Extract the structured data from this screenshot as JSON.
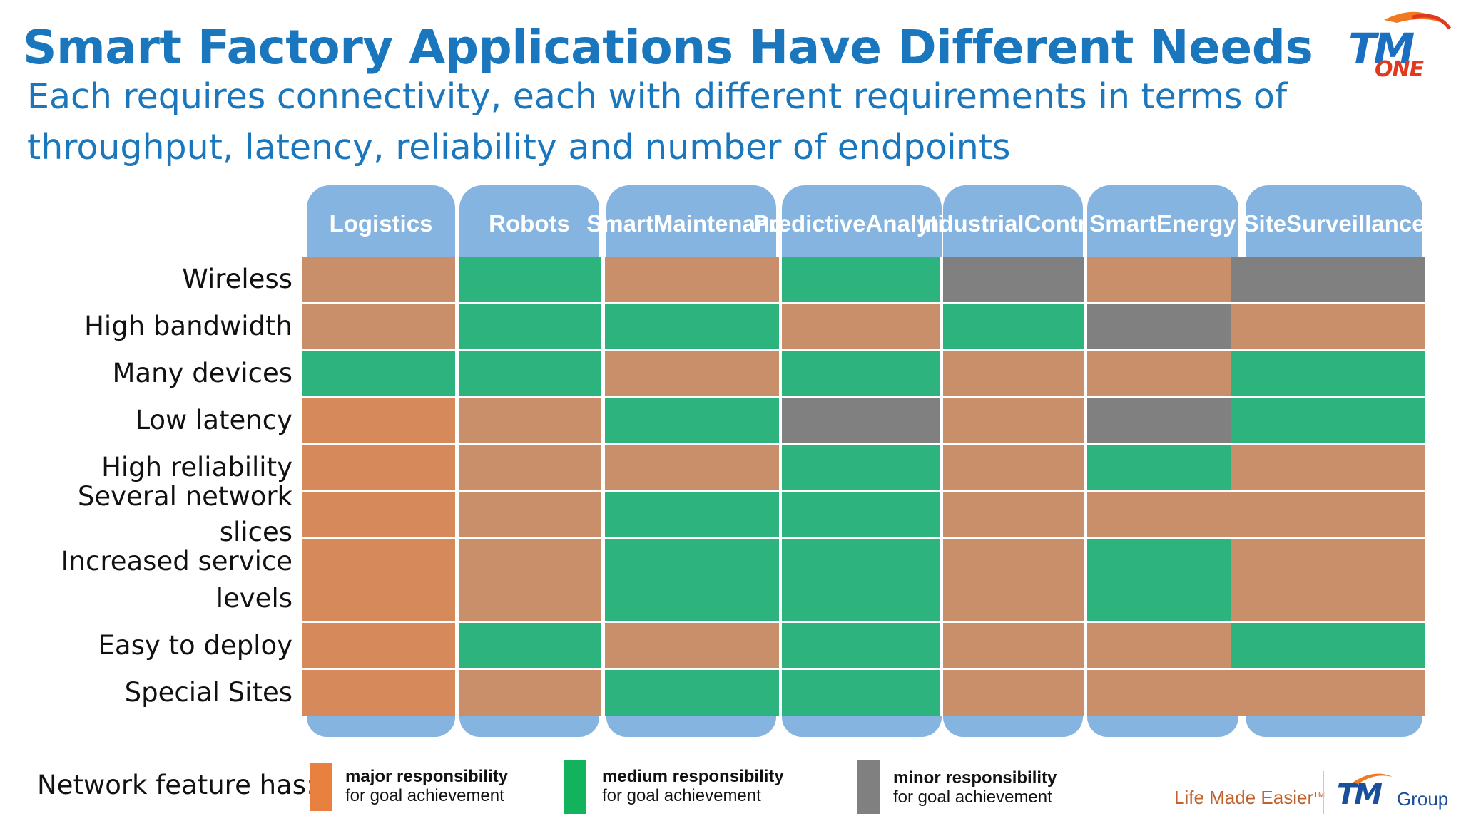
{
  "title": "Smart Factory Applications Have Different Needs",
  "subtitle": "Each requires connectivity, each with different requirements in terms of throughput, latency, reliability and number of endpoints",
  "logo": {
    "brand": "TM",
    "suffix": "ONE"
  },
  "columns": [
    "Logistics",
    "Robots",
    "Smart Maintenance",
    "Predictive Analytics",
    "Industrial Control",
    "Smart Energy",
    "Site Surveillance"
  ],
  "rows": [
    "Wireless",
    "High bandwidth",
    "Many devices",
    "Low latency",
    "High reliability",
    "Several network slices",
    "Increased service levels",
    "Easy to deploy",
    "Special Sites"
  ],
  "matrix": [
    [
      "major",
      "medium",
      "major",
      "medium",
      "minor",
      "major",
      "minor"
    ],
    [
      "major",
      "medium",
      "medium",
      "major",
      "medium",
      "minor",
      "major"
    ],
    [
      "medium",
      "medium",
      "major",
      "medium",
      "major",
      "major",
      "medium"
    ],
    [
      "major",
      "major",
      "medium",
      "minor",
      "major",
      "minor",
      "medium"
    ],
    [
      "major",
      "major",
      "major",
      "medium",
      "major",
      "medium",
      "major"
    ],
    [
      "major",
      "major",
      "medium",
      "medium",
      "major",
      "major",
      "major"
    ],
    [
      "major",
      "major",
      "medium",
      "medium",
      "major",
      "medium",
      "major"
    ],
    [
      "major",
      "medium",
      "major",
      "medium",
      "major",
      "major",
      "medium"
    ],
    [
      "major",
      "major",
      "medium",
      "medium",
      "major",
      "major",
      "major"
    ]
  ],
  "legend": {
    "title": "Network feature has:",
    "items": [
      {
        "level": "major",
        "bold": "major responsibility",
        "text": "for goal achievement",
        "color": "#e8813f"
      },
      {
        "level": "medium",
        "bold": "medium responsibility",
        "text": "for goal achievement",
        "color": "#13b35e"
      },
      {
        "level": "minor",
        "bold": "minor responsibility",
        "text": "for goal achievement",
        "color": "#808080"
      }
    ]
  },
  "footer": {
    "tagline": "Life Made Easier",
    "trademark": "TM",
    "group_brand": "TM",
    "group_word": "Group"
  },
  "colors": {
    "title": "#1a77bd",
    "header": "#86b4e0",
    "major_cell": "#c98f6a",
    "medium_cell": "#2db37e",
    "minor_cell": "#808080"
  }
}
